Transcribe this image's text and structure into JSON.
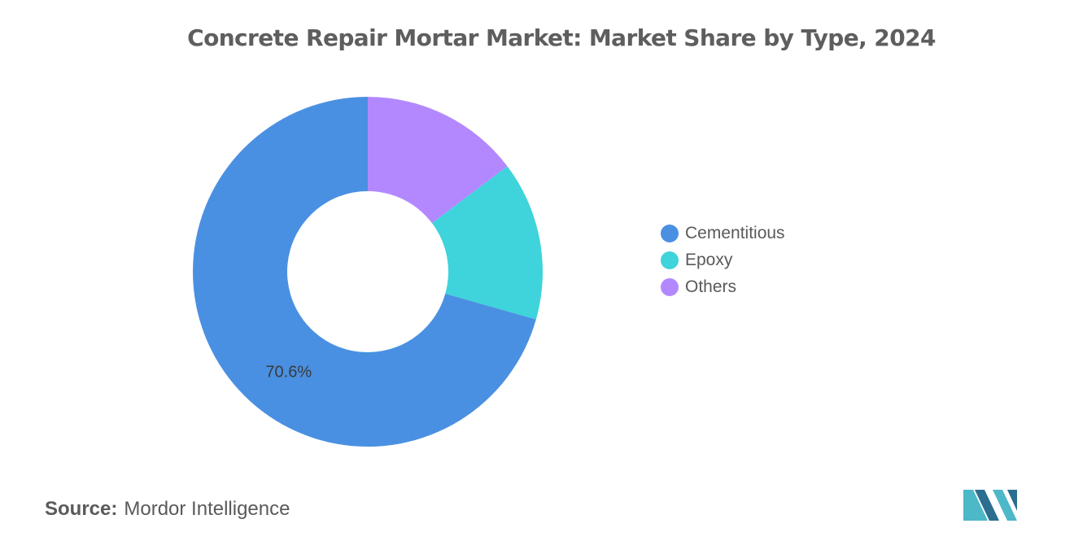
{
  "chart_data": {
    "type": "pie",
    "title": "Concrete Repair Mortar Market: Market Share by Type, 2024",
    "categories": [
      "Cementitious",
      "Epoxy",
      "Others"
    ],
    "values": [
      70.6,
      14.7,
      14.7
    ],
    "colors": [
      "#4a90e2",
      "#3fd3db",
      "#b388ff"
    ],
    "data_labels": [
      "70.6%",
      "",
      ""
    ],
    "donut": true,
    "legend_position": "right"
  },
  "source": {
    "label": "Source:",
    "value": "Mordor Intelligence"
  },
  "logo": {
    "icon": "mordor-intelligence-logo",
    "colors": [
      "#4db8c8",
      "#2b6e8f"
    ]
  }
}
